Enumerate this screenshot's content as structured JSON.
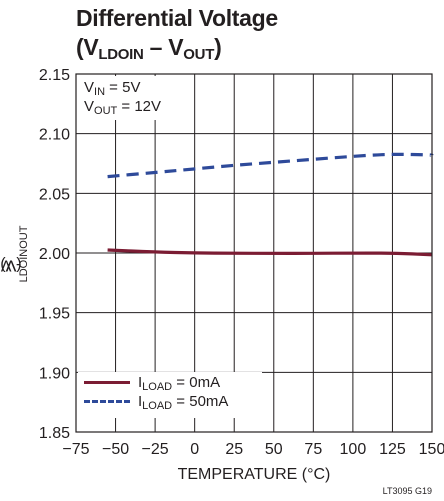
{
  "chart_data": {
    "type": "line",
    "title_line1": "Differential Voltage",
    "title_line2_prefix": "(V",
    "title_line2_sub1": "LDOIN",
    "title_line2_mid": " – V",
    "title_line2_sub2": "OUT",
    "title_line2_suffix": ")",
    "ylabel_prefix": "V",
    "ylabel_sub1": "LDOIN",
    "ylabel_mid": " - V",
    "ylabel_sub2": "OUT",
    "ylabel_suffix": " (V)",
    "xlabel": "TEMPERATURE (°C)",
    "credit": "LT3095 G19",
    "xlim": [
      -75,
      150
    ],
    "ylim": [
      1.85,
      2.15
    ],
    "x_ticks": [
      "−75",
      "−50",
      "−25",
      "0",
      "25",
      "50",
      "75",
      "100",
      "125",
      "150"
    ],
    "x_tick_values": [
      -75,
      -50,
      -25,
      0,
      25,
      50,
      75,
      100,
      125,
      150
    ],
    "y_ticks": [
      "1.85",
      "1.90",
      "1.95",
      "2.00",
      "2.05",
      "2.10",
      "2.15"
    ],
    "y_tick_values": [
      1.85,
      1.9,
      1.95,
      2.0,
      2.05,
      2.1,
      2.15
    ],
    "grid": true,
    "conditions": [
      {
        "prefix": "V",
        "sub": "IN",
        "suffix": " = 5V"
      },
      {
        "prefix": "V",
        "sub": "OUT",
        "suffix": " = 12V"
      }
    ],
    "series": [
      {
        "name_prefix": "I",
        "name_sub": "LOAD",
        "name_suffix": " = 0mA",
        "color": "#7b1c33",
        "dash": "solid",
        "x": [
          -55,
          -25,
          0,
          25,
          50,
          75,
          100,
          125,
          150
        ],
        "y": [
          2.0025,
          2.0008,
          2.0,
          1.9998,
          1.9997,
          1.9997,
          1.9999,
          2.0,
          1.9985
        ]
      },
      {
        "name_prefix": "I",
        "name_sub": "LOAD",
        "name_suffix": " = 50mA",
        "color": "#2e4a9a",
        "dash": "dashed",
        "x": [
          -55,
          -25,
          0,
          25,
          50,
          75,
          100,
          125,
          150
        ],
        "y": [
          2.064,
          2.0675,
          2.0705,
          2.0735,
          2.076,
          2.0785,
          2.081,
          2.083,
          2.082
        ]
      }
    ]
  }
}
